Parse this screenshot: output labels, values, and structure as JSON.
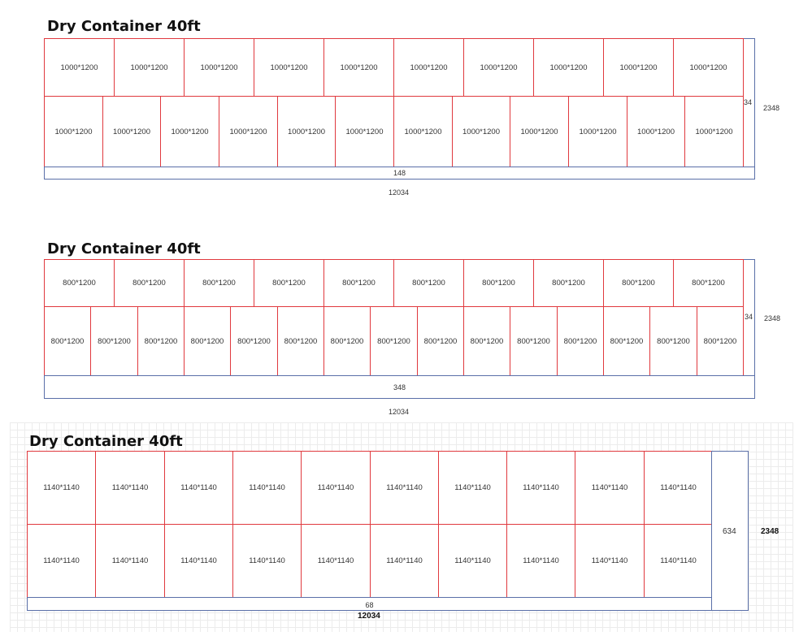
{
  "diagrams": [
    {
      "title": "Dry Container 40ft",
      "top_row": [
        "1000*1200",
        "1000*1200",
        "1000*1200",
        "1000*1200",
        "1000*1200",
        "1000*1200",
        "1000*1200",
        "1000*1200",
        "1000*1200",
        "1000*1200"
      ],
      "bottom_row": [
        "1000*1200",
        "1000*1200",
        "1000*1200",
        "1000*1200",
        "1000*1200",
        "1000*1200",
        "1000*1200",
        "1000*1200",
        "1000*1200",
        "1000*1200",
        "1000*1200",
        "1000*1200"
      ],
      "side_gap": "34",
      "width": "2348",
      "bottom_gap": "148",
      "length": "12034"
    },
    {
      "title": "Dry Container 40ft",
      "top_row": [
        "800*1200",
        "800*1200",
        "800*1200",
        "800*1200",
        "800*1200",
        "800*1200",
        "800*1200",
        "800*1200",
        "800*1200",
        "800*1200"
      ],
      "bottom_row": [
        "800*1200",
        "800*1200",
        "800*1200",
        "800*1200",
        "800*1200",
        "800*1200",
        "800*1200",
        "800*1200",
        "800*1200",
        "800*1200",
        "800*1200",
        "800*1200",
        "800*1200",
        "800*1200",
        "800*1200"
      ],
      "side_gap": "34",
      "width": "2348",
      "bottom_gap": "348",
      "length": "12034"
    },
    {
      "title": "Dry Container 40ft",
      "top_row": [
        "1140*1140",
        "1140*1140",
        "1140*1140",
        "1140*1140",
        "1140*1140",
        "1140*1140",
        "1140*1140",
        "1140*1140",
        "1140*1140",
        "1140*1140"
      ],
      "bottom_row": [
        "1140*1140",
        "1140*1140",
        "1140*1140",
        "1140*1140",
        "1140*1140",
        "1140*1140",
        "1140*1140",
        "1140*1140",
        "1140*1140",
        "1140*1140"
      ],
      "side_gap": "634",
      "width": "2348",
      "bottom_gap": "68",
      "length": "12034"
    }
  ]
}
